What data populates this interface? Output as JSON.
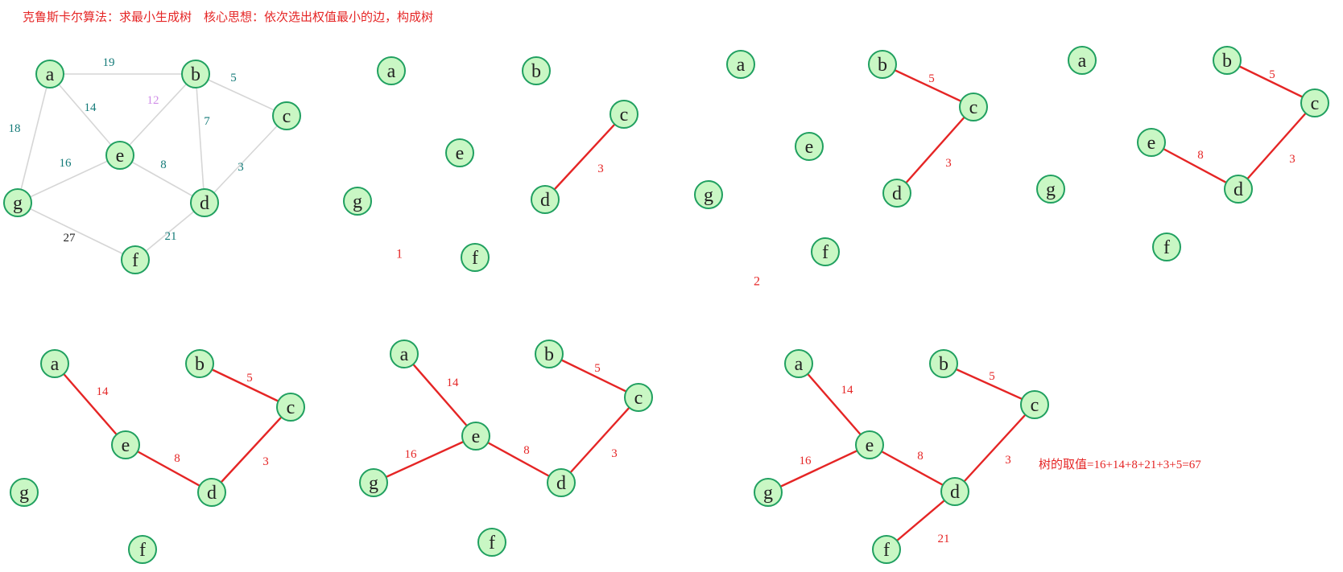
{
  "title": "克鲁斯卡尔算法：求最小生成树    核心思想：依次选出权值最小的边，构成树",
  "sum_text": "树的取值=16+14+8+21+3+5=67",
  "colors": {
    "node_fill": "#c9f7c4",
    "node_stroke": "#20a060",
    "graph_edge": "#d6d6d6",
    "tree_edge": "#e52525",
    "weight_teal": "#137a78",
    "weight_violet": "#d08ee8",
    "weight_black": "#222222",
    "weight_red": "#e52525"
  },
  "nodes": [
    "a",
    "b",
    "c",
    "d",
    "e",
    "f",
    "g"
  ],
  "graph": {
    "edges": [
      {
        "from": "a",
        "to": "b",
        "w": "19",
        "color": "weight_teal"
      },
      {
        "from": "a",
        "to": "e",
        "w": "14",
        "color": "weight_teal"
      },
      {
        "from": "a",
        "to": "g",
        "w": "18",
        "color": "weight_teal"
      },
      {
        "from": "b",
        "to": "c",
        "w": "5",
        "color": "weight_teal"
      },
      {
        "from": "b",
        "to": "e",
        "w": "12",
        "color": "weight_violet"
      },
      {
        "from": "b",
        "to": "d",
        "w": "7",
        "color": "weight_teal"
      },
      {
        "from": "c",
        "to": "d",
        "w": "3",
        "color": "weight_teal"
      },
      {
        "from": "e",
        "to": "g",
        "w": "16",
        "color": "weight_teal"
      },
      {
        "from": "e",
        "to": "d",
        "w": "8",
        "color": "weight_teal"
      },
      {
        "from": "g",
        "to": "f",
        "w": "27",
        "color": "weight_black"
      },
      {
        "from": "d",
        "to": "f",
        "w": "21",
        "color": "weight_teal"
      }
    ]
  },
  "steps": [
    {
      "label": "1",
      "edges": [
        {
          "from": "c",
          "to": "d",
          "w": "3"
        }
      ]
    },
    {
      "label": "2",
      "edges": [
        {
          "from": "b",
          "to": "c",
          "w": "5"
        },
        {
          "from": "c",
          "to": "d",
          "w": "3"
        }
      ]
    },
    {
      "label": "",
      "edges": [
        {
          "from": "b",
          "to": "c",
          "w": "5"
        },
        {
          "from": "c",
          "to": "d",
          "w": "3"
        },
        {
          "from": "e",
          "to": "d",
          "w": "8"
        }
      ]
    },
    {
      "label": "",
      "edges": [
        {
          "from": "a",
          "to": "e",
          "w": "14"
        },
        {
          "from": "b",
          "to": "c",
          "w": "5"
        },
        {
          "from": "e",
          "to": "d",
          "w": "8"
        },
        {
          "from": "c",
          "to": "d",
          "w": "3"
        }
      ]
    },
    {
      "label": "",
      "edges": [
        {
          "from": "a",
          "to": "e",
          "w": "14"
        },
        {
          "from": "b",
          "to": "c",
          "w": "5"
        },
        {
          "from": "e",
          "to": "g",
          "w": "16"
        },
        {
          "from": "e",
          "to": "d",
          "w": "8"
        },
        {
          "from": "c",
          "to": "d",
          "w": "3"
        }
      ]
    },
    {
      "label": "",
      "edges": [
        {
          "from": "a",
          "to": "e",
          "w": "14"
        },
        {
          "from": "b",
          "to": "c",
          "w": "5"
        },
        {
          "from": "e",
          "to": "g",
          "w": "16"
        },
        {
          "from": "e",
          "to": "d",
          "w": "8"
        },
        {
          "from": "c",
          "to": "d",
          "w": "3"
        },
        {
          "from": "d",
          "to": "f",
          "w": "21"
        }
      ]
    }
  ]
}
